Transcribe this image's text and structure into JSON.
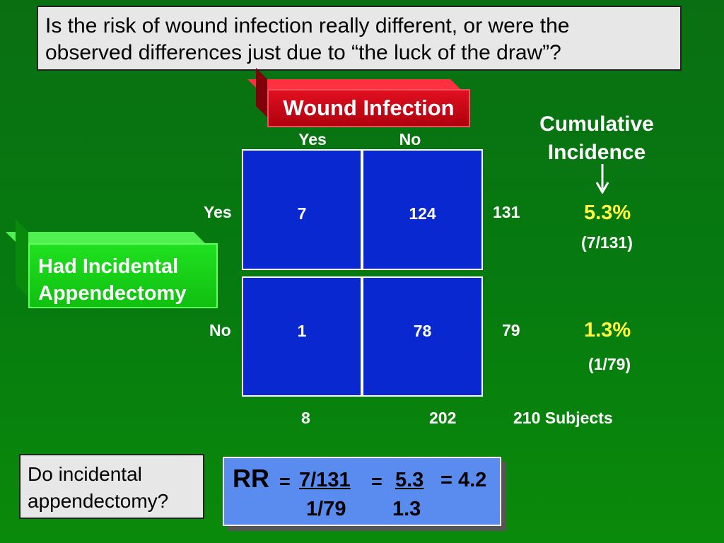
{
  "question": {
    "line1": "Is the risk of wound infection really different, or were the",
    "line2": "observed differences just due to “the luck of the draw”?"
  },
  "wound_header": "Wound Infection",
  "col_headers": {
    "yes": "Yes",
    "no": "No"
  },
  "had_label": {
    "line1": "Had Incidental",
    "line2": "Appendectomy"
  },
  "row_headers": {
    "yes": "Yes",
    "no": "No"
  },
  "cells": {
    "yes_yes": "7",
    "yes_no": "124",
    "no_yes": "1",
    "no_no": "78"
  },
  "row_totals": {
    "yes": "131",
    "no": "79"
  },
  "col_totals": {
    "yes": "8",
    "no": "202"
  },
  "grand_total": "210 Subjects",
  "cumulative": {
    "title_line1": "Cumulative",
    "title_line2": "Incidence",
    "arrow_icon": "down-arrow-icon",
    "yes_pct": "5.3%",
    "yes_frac": "(7/131)",
    "no_pct": "1.3%",
    "no_frac": "(1/79)"
  },
  "prompt": {
    "line1": "Do incidental",
    "line2": "appendectomy?"
  },
  "rr": {
    "label": "RR",
    "eq1": "=",
    "num": "7/131",
    "eq2": "=",
    "ratio_num": "5.3",
    "eq3": "= 4.2",
    "den": "1/79",
    "ratio_den": "1.3"
  },
  "colors": {
    "background": "#067a10",
    "cell_fill": "#0a28d0",
    "wound_box": "#d00010",
    "had_box": "#20d020",
    "rr_box": "#5a8cf0",
    "highlight": "#ffff40"
  }
}
